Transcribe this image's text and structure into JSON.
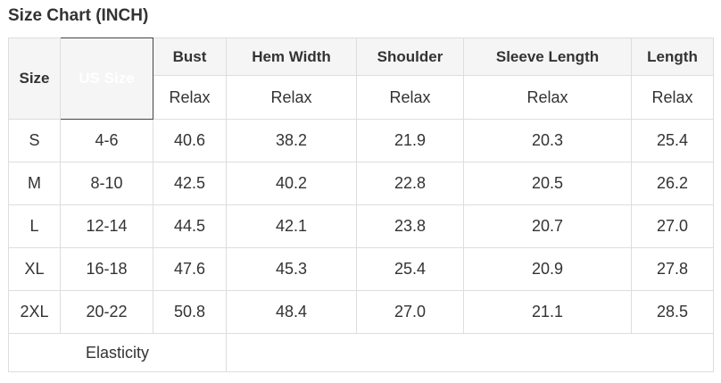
{
  "title": "Size Chart (INCH)",
  "colors": {
    "border": "#dddddd",
    "header_bg": "#f5f5f5",
    "us_size_cell_bg": "#454545",
    "us_size_cell_text": "#ffffff",
    "text": "#333333",
    "page_bg": "#ffffff"
  },
  "table": {
    "corner_headers": [
      "Size",
      "US Size"
    ],
    "columns": [
      {
        "label": "Bust",
        "fit": "Relax"
      },
      {
        "label": "Hem Width",
        "fit": "Relax"
      },
      {
        "label": "Shoulder",
        "fit": "Relax"
      },
      {
        "label": "Sleeve Length",
        "fit": "Relax"
      },
      {
        "label": "Length",
        "fit": "Relax"
      }
    ],
    "rows": [
      {
        "size": "S",
        "us_size": "4-6",
        "values": [
          "40.6",
          "38.2",
          "21.9",
          "20.3",
          "25.4"
        ]
      },
      {
        "size": "M",
        "us_size": "8-10",
        "values": [
          "42.5",
          "40.2",
          "22.8",
          "20.5",
          "26.2"
        ]
      },
      {
        "size": "L",
        "us_size": "12-14",
        "values": [
          "44.5",
          "42.1",
          "23.8",
          "20.7",
          "27.0"
        ]
      },
      {
        "size": "XL",
        "us_size": "16-18",
        "values": [
          "47.6",
          "45.3",
          "25.4",
          "20.9",
          "27.8"
        ]
      },
      {
        "size": "2XL",
        "us_size": "20-22",
        "values": [
          "50.8",
          "48.4",
          "27.0",
          "21.1",
          "28.5"
        ]
      }
    ],
    "footer": {
      "label": "Elasticity",
      "value": ""
    }
  }
}
